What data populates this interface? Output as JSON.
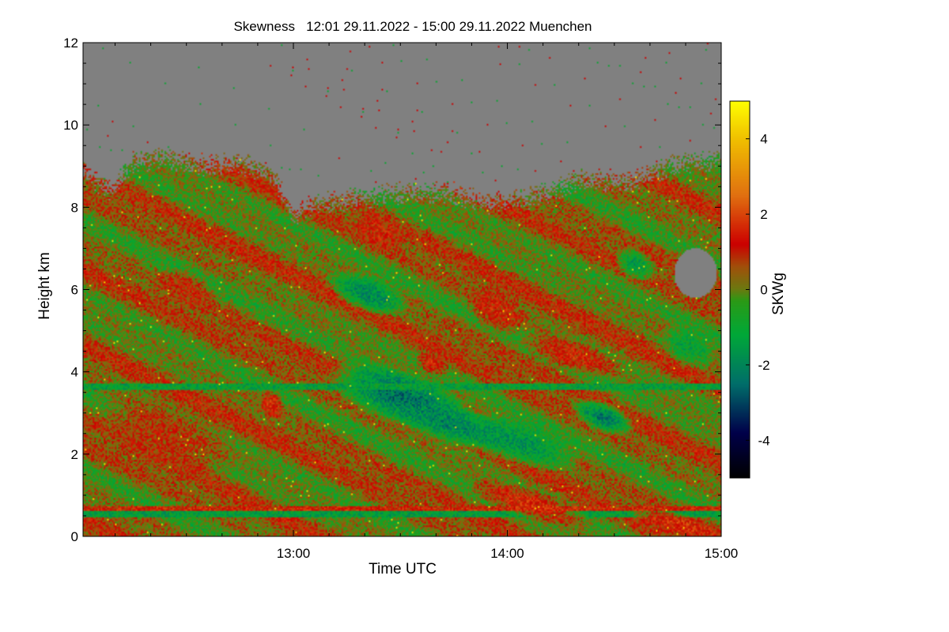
{
  "chart_data": {
    "type": "heatmap",
    "title": "Skewness   12:01 29.11.2022 - 15:00 29.11.2022 Muenchen",
    "xlabel": "Time UTC",
    "ylabel": "Height km",
    "colorbar_label": "SKWg",
    "x_range_hours": [
      12.0167,
      15.0
    ],
    "y_range_km": [
      0,
      12
    ],
    "x_ticks": [
      {
        "label": "13:00",
        "value": 13.0
      },
      {
        "label": "14:00",
        "value": 14.0
      },
      {
        "label": "15:00",
        "value": 15.0
      }
    ],
    "x_minor_step_hours": 0.1667,
    "y_ticks": [
      0,
      2,
      4,
      6,
      8,
      10,
      12
    ],
    "colorbar_range": [
      -5,
      5
    ],
    "colorbar_ticks": [
      -4,
      -2,
      0,
      2,
      4
    ],
    "colormap": [
      {
        "value": -5,
        "color": "#000000"
      },
      {
        "value": -3.8,
        "color": "#00004a"
      },
      {
        "value": -2.5,
        "color": "#006e6a"
      },
      {
        "value": -1.2,
        "color": "#00a838"
      },
      {
        "value": -0.3,
        "color": "#2a9a16"
      },
      {
        "value": 0,
        "color": "#6a7a10"
      },
      {
        "value": 0.6,
        "color": "#a0500a"
      },
      {
        "value": 1.2,
        "color": "#cc0000"
      },
      {
        "value": 2.5,
        "color": "#e07010"
      },
      {
        "value": 4.0,
        "color": "#f0c000"
      },
      {
        "value": 5,
        "color": "#ffff00"
      }
    ],
    "no_data_color": "#808080",
    "regions": [
      {
        "kind": "base",
        "skw": 0.25
      },
      {
        "kind": "band",
        "t0": 12.0167,
        "t1": 15.0,
        "h0": 0.45,
        "h1": 0.62,
        "skw": -1.3
      },
      {
        "kind": "band",
        "t0": 12.0167,
        "t1": 15.0,
        "h0": 0.62,
        "h1": 0.72,
        "skw": 1.3
      },
      {
        "kind": "blob",
        "t": 12.4,
        "h": 2.4,
        "rt": 0.35,
        "rh": 0.9,
        "skw": 0.8
      },
      {
        "kind": "blob",
        "t": 12.5,
        "h": 6.0,
        "rt": 0.15,
        "rh": 0.5,
        "skw": 0.9
      },
      {
        "kind": "blob",
        "t": 12.9,
        "h": 3.2,
        "rt": 0.06,
        "rh": 0.4,
        "skw": 1.3
      },
      {
        "kind": "blob",
        "t": 13.35,
        "h": 5.9,
        "rt": 0.2,
        "rh": 0.5,
        "skw": -1.6
      },
      {
        "kind": "blob",
        "t": 13.5,
        "h": 3.4,
        "rt": 0.35,
        "rh": 0.7,
        "skw": -2.0
      },
      {
        "kind": "blob",
        "t": 13.75,
        "h": 2.7,
        "rt": 0.3,
        "rh": 0.5,
        "skw": -1.7
      },
      {
        "kind": "blob",
        "t": 14.05,
        "h": 2.3,
        "rt": 0.3,
        "rh": 0.6,
        "skw": -1.4
      },
      {
        "kind": "blob",
        "t": 14.45,
        "h": 2.9,
        "rt": 0.15,
        "rh": 0.4,
        "skw": -1.8
      },
      {
        "kind": "blob",
        "t": 13.95,
        "h": 5.5,
        "rt": 0.15,
        "rh": 0.6,
        "skw": 1.1
      },
      {
        "kind": "blob",
        "t": 14.3,
        "h": 4.4,
        "rt": 0.25,
        "rh": 0.4,
        "skw": 1.2
      },
      {
        "kind": "blob",
        "t": 13.65,
        "h": 4.2,
        "rt": 0.08,
        "rh": 0.3,
        "skw": 1.2
      },
      {
        "kind": "blob",
        "t": 14.1,
        "h": 0.8,
        "rt": 0.3,
        "rh": 0.4,
        "skw": 1.3
      },
      {
        "kind": "blob",
        "t": 14.8,
        "h": 0.3,
        "rt": 0.25,
        "rh": 0.3,
        "skw": 1.4
      },
      {
        "kind": "blob",
        "t": 13.4,
        "h": 7.4,
        "rt": 0.12,
        "rh": 0.5,
        "skw": 1.1
      },
      {
        "kind": "blob",
        "t": 14.6,
        "h": 6.6,
        "rt": 0.1,
        "rh": 0.4,
        "skw": -1.2
      },
      {
        "kind": "blob",
        "t": 14.85,
        "h": 4.6,
        "rt": 0.15,
        "rh": 0.5,
        "skw": -1.0
      },
      {
        "kind": "band",
        "t0": 12.0167,
        "t1": 15.0,
        "h0": 3.55,
        "h1": 3.7,
        "skw": -1.2
      }
    ],
    "cloud_top_km": [
      {
        "t": 12.0167,
        "h": 8.9
      },
      {
        "t": 12.15,
        "h": 8.4
      },
      {
        "t": 12.25,
        "h": 9.1
      },
      {
        "t": 12.4,
        "h": 9.2
      },
      {
        "t": 12.6,
        "h": 9.0
      },
      {
        "t": 12.75,
        "h": 9.1
      },
      {
        "t": 12.9,
        "h": 8.8
      },
      {
        "t": 13.0,
        "h": 7.8
      },
      {
        "t": 13.1,
        "h": 8.1
      },
      {
        "t": 13.25,
        "h": 8.2
      },
      {
        "t": 13.45,
        "h": 8.3
      },
      {
        "t": 13.7,
        "h": 8.4
      },
      {
        "t": 13.9,
        "h": 8.1
      },
      {
        "t": 14.1,
        "h": 8.2
      },
      {
        "t": 14.35,
        "h": 8.7
      },
      {
        "t": 14.55,
        "h": 8.6
      },
      {
        "t": 14.75,
        "h": 9.0
      },
      {
        "t": 15.0,
        "h": 9.2
      }
    ],
    "no_data_hole": {
      "t": 14.88,
      "h": 6.4,
      "rt": 0.1,
      "rh": 0.6
    }
  }
}
